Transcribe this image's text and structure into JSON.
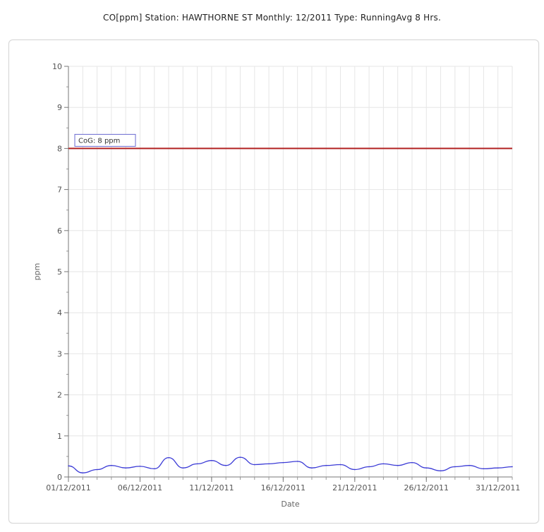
{
  "title": "CO[ppm] Station: HAWTHORNE ST   Monthly: 12/2011   Type: RunningAvg 8 Hrs.",
  "chart_data": {
    "type": "line",
    "xlabel": "Date",
    "ylabel": "ppm",
    "ylim": [
      0,
      10
    ],
    "yticks": [
      0,
      1,
      2,
      3,
      4,
      5,
      6,
      7,
      8,
      9,
      10
    ],
    "xlim": [
      "2011-12-01",
      "2012-01-01"
    ],
    "xticks": [
      "01/12/2011",
      "06/12/2011",
      "11/12/2011",
      "16/12/2011",
      "21/12/2011",
      "26/12/2011",
      "31/12/2011"
    ],
    "grid": true,
    "reference_line": {
      "label": "CoG: 8 ppm",
      "value": 8,
      "color": "#b22222"
    },
    "series": [
      {
        "color": "#3b3bd6",
        "x": [
          "01/12/2011",
          "02/12/2011",
          "03/12/2011",
          "04/12/2011",
          "05/12/2011",
          "06/12/2011",
          "07/12/2011",
          "08/12/2011",
          "09/12/2011",
          "10/12/2011",
          "11/12/2011",
          "12/12/2011",
          "13/12/2011",
          "14/12/2011",
          "15/12/2011",
          "16/12/2011",
          "17/12/2011",
          "18/12/2011",
          "19/12/2011",
          "20/12/2011",
          "21/12/2011",
          "22/12/2011",
          "23/12/2011",
          "24/12/2011",
          "25/12/2011",
          "26/12/2011",
          "27/12/2011",
          "28/12/2011",
          "29/12/2011",
          "30/12/2011",
          "31/12/2011",
          "01/01/2012"
        ],
        "values": [
          0.27,
          0.1,
          0.18,
          0.28,
          0.22,
          0.26,
          0.2,
          0.47,
          0.22,
          0.32,
          0.4,
          0.28,
          0.48,
          0.3,
          0.32,
          0.35,
          0.38,
          0.22,
          0.28,
          0.3,
          0.18,
          0.25,
          0.32,
          0.28,
          0.35,
          0.22,
          0.15,
          0.25,
          0.28,
          0.2,
          0.22,
          0.25
        ]
      }
    ]
  }
}
